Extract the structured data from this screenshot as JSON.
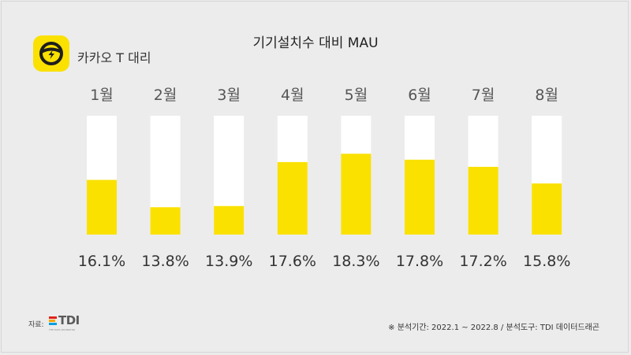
{
  "app": {
    "name": "카카오 T 대리",
    "icon": "steering-wheel-icon",
    "brand_color": "#fae100"
  },
  "source": {
    "label": "자료:",
    "logo_text": "TDI",
    "logo_subtext": "THE DATA INCUBATOR"
  },
  "footnote": "※ 분석기간:  2022.1 ~ 2022.8  / 분석도구: TDI 데이터드래곤",
  "chart_data": {
    "type": "bar",
    "title": "기기설치수 대비 MAU",
    "categories": [
      "1월",
      "2월",
      "3월",
      "4월",
      "5월",
      "6월",
      "7월",
      "8월"
    ],
    "values": [
      16.1,
      13.8,
      13.9,
      17.6,
      18.3,
      17.8,
      17.2,
      15.8
    ],
    "value_labels": [
      "16.1%",
      "13.8%",
      "13.9%",
      "17.6%",
      "18.3%",
      "17.8%",
      "17.2%",
      "15.8%"
    ],
    "ylim": [
      11.5,
      21.5
    ],
    "bar_color": "#fae100",
    "track_color": "#ffffff",
    "xlabel": "",
    "ylabel": "",
    "grid": false
  }
}
